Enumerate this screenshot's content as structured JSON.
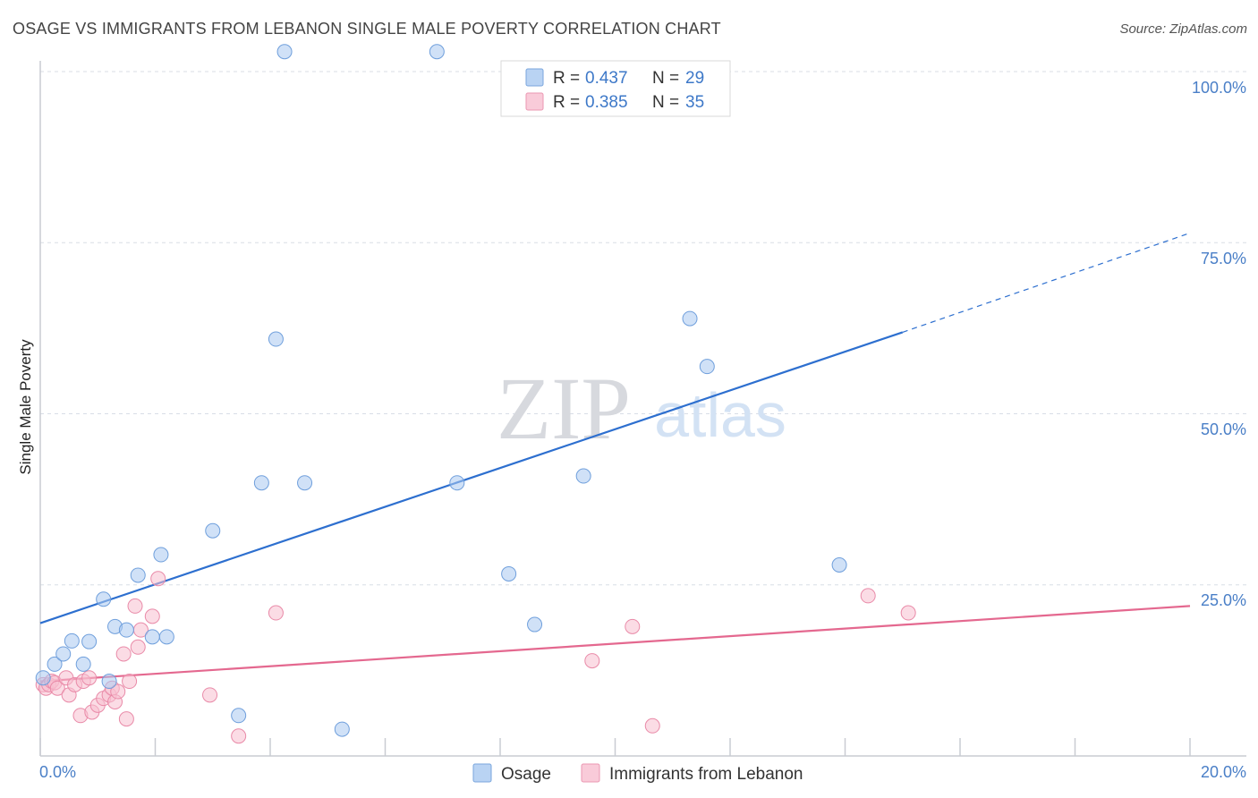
{
  "header": {
    "title": "OSAGE VS IMMIGRANTS FROM LEBANON SINGLE MALE POVERTY CORRELATION CHART",
    "source": "Source: ZipAtlas.com"
  },
  "colors": {
    "osage": "#a9c8f0",
    "osage_stroke": "#6f9fdc",
    "osage_line": "#2d6fcf",
    "lebanon": "#f7bfd0",
    "lebanon_stroke": "#e98aa8",
    "lebanon_line": "#e4688f",
    "tick_text": "#4a7fc7",
    "grid": "#d8dde6"
  },
  "chart_data": {
    "type": "scatter",
    "title": "OSAGE VS IMMIGRANTS FROM LEBANON SINGLE MALE POVERTY CORRELATION CHART",
    "xlabel": "",
    "ylabel": "Single Male Poverty",
    "xlim": [
      0,
      20
    ],
    "ylim": [
      0,
      100
    ],
    "x_tick_labels": [
      "0.0%",
      "20.0%"
    ],
    "y_tick_labels": [
      "25.0%",
      "50.0%",
      "75.0%",
      "100.0%"
    ],
    "y_ticks": [
      25,
      50,
      75,
      100
    ],
    "watermark": {
      "zip": "ZIP",
      "atlas": "atlas"
    },
    "legend": {
      "rows": [
        {
          "r_label": "R = ",
          "r_value": "0.437",
          "n_label": "N = ",
          "n_value": "29"
        },
        {
          "r_label": "R = ",
          "r_value": "0.385",
          "n_label": "N = ",
          "n_value": "35"
        }
      ]
    },
    "series": [
      {
        "name": "Osage",
        "points": [
          [
            0.05,
            13.5
          ],
          [
            0.25,
            15.5
          ],
          [
            0.4,
            17
          ],
          [
            0.55,
            18.9
          ],
          [
            0.75,
            15.5
          ],
          [
            0.85,
            18.8
          ],
          [
            1.1,
            25
          ],
          [
            1.2,
            13
          ],
          [
            1.3,
            21
          ],
          [
            1.5,
            20.5
          ],
          [
            1.7,
            28.5
          ],
          [
            1.95,
            19.5
          ],
          [
            2.1,
            31.5
          ],
          [
            2.2,
            19.5
          ],
          [
            3.0,
            35
          ],
          [
            3.45,
            8
          ],
          [
            3.85,
            42
          ],
          [
            4.1,
            63
          ],
          [
            4.25,
            105
          ],
          [
            4.6,
            42
          ],
          [
            5.25,
            6
          ],
          [
            6.9,
            105
          ],
          [
            7.25,
            42
          ],
          [
            8.15,
            28.7
          ],
          [
            8.6,
            21.3
          ],
          [
            9.45,
            43
          ],
          [
            11.3,
            66
          ],
          [
            11.6,
            59
          ],
          [
            13.9,
            30
          ]
        ],
        "trend": {
          "x0": 0,
          "y0": 21.5,
          "x1": 15,
          "y1": 64,
          "dash_x1": 20,
          "dash_y1": 78.5
        }
      },
      {
        "name": "Immigrants from Lebanon",
        "points": [
          [
            0.05,
            12.5
          ],
          [
            0.1,
            12
          ],
          [
            0.15,
            12.5
          ],
          [
            0.2,
            13
          ],
          [
            0.25,
            12.8
          ],
          [
            0.3,
            12
          ],
          [
            0.45,
            13.5
          ],
          [
            0.5,
            11
          ],
          [
            0.6,
            12.5
          ],
          [
            0.7,
            8
          ],
          [
            0.75,
            13
          ],
          [
            0.85,
            13.5
          ],
          [
            0.9,
            8.5
          ],
          [
            1.0,
            9.5
          ],
          [
            1.1,
            10.5
          ],
          [
            1.2,
            11
          ],
          [
            1.25,
            12
          ],
          [
            1.3,
            10
          ],
          [
            1.35,
            11.5
          ],
          [
            1.45,
            17
          ],
          [
            1.5,
            7.5
          ],
          [
            1.55,
            13
          ],
          [
            1.65,
            24
          ],
          [
            1.7,
            18
          ],
          [
            1.75,
            20.5
          ],
          [
            1.95,
            22.5
          ],
          [
            2.05,
            28
          ],
          [
            2.95,
            11
          ],
          [
            3.45,
            5
          ],
          [
            4.1,
            23
          ],
          [
            9.6,
            16
          ],
          [
            10.3,
            21
          ],
          [
            10.65,
            6.5
          ],
          [
            14.4,
            25.5
          ],
          [
            15.1,
            23
          ]
        ],
        "trend": {
          "x0": 0,
          "y0": 13,
          "x1": 20,
          "y1": 24
        }
      }
    ]
  },
  "bottom_legend": {
    "items": [
      {
        "label": "Osage"
      },
      {
        "label": "Immigrants from Lebanon"
      }
    ]
  }
}
